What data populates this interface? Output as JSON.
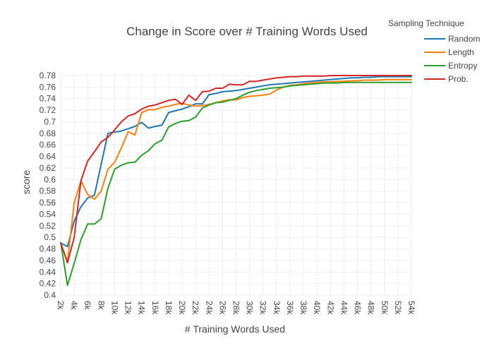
{
  "chart_data": {
    "type": "line",
    "title": "Change in Score over # Training Words Used",
    "xlabel": "# Training Words Used",
    "ylabel": "score",
    "x": [
      2000,
      3000,
      4000,
      5000,
      6000,
      7000,
      8000,
      9000,
      10000,
      11000,
      12000,
      13000,
      14000,
      15000,
      16000,
      17000,
      18000,
      19000,
      20000,
      21000,
      22000,
      23000,
      24000,
      25000,
      26000,
      27000,
      28000,
      29000,
      30000,
      31000,
      32000,
      33000,
      34000,
      35000,
      36000,
      37000,
      38000,
      39000,
      40000,
      41000,
      42000,
      43000,
      44000,
      45000,
      46000,
      47000,
      48000,
      49000,
      50000,
      51000,
      52000,
      53000,
      54000
    ],
    "xlim": [
      2000,
      54000
    ],
    "ylim": [
      0.4,
      0.78
    ],
    "grid": true,
    "x_ticks": [
      {
        "value": 2000,
        "label": "2k"
      },
      {
        "value": 4000,
        "label": "4k"
      },
      {
        "value": 6000,
        "label": "6k"
      },
      {
        "value": 8000,
        "label": "8k"
      },
      {
        "value": 10000,
        "label": "10k"
      },
      {
        "value": 12000,
        "label": "12k"
      },
      {
        "value": 14000,
        "label": "14k"
      },
      {
        "value": 16000,
        "label": "16k"
      },
      {
        "value": 18000,
        "label": "18k"
      },
      {
        "value": 20000,
        "label": "20k"
      },
      {
        "value": 22000,
        "label": "22k"
      },
      {
        "value": 24000,
        "label": "24k"
      },
      {
        "value": 26000,
        "label": "26k"
      },
      {
        "value": 28000,
        "label": "28k"
      },
      {
        "value": 30000,
        "label": "30k"
      },
      {
        "value": 32000,
        "label": "32k"
      },
      {
        "value": 34000,
        "label": "34k"
      },
      {
        "value": 36000,
        "label": "36k"
      },
      {
        "value": 38000,
        "label": "38k"
      },
      {
        "value": 40000,
        "label": "40k"
      },
      {
        "value": 42000,
        "label": "42k"
      },
      {
        "value": 44000,
        "label": "44k"
      },
      {
        "value": 46000,
        "label": "46k"
      },
      {
        "value": 48000,
        "label": "48k"
      },
      {
        "value": 50000,
        "label": "50k"
      },
      {
        "value": 52000,
        "label": "52k"
      },
      {
        "value": 54000,
        "label": "54k"
      }
    ],
    "y_ticks": [
      {
        "value": 0.4,
        "label": "0.4"
      },
      {
        "value": 0.42,
        "label": "0.42"
      },
      {
        "value": 0.44,
        "label": "0.44"
      },
      {
        "value": 0.46,
        "label": "0.46"
      },
      {
        "value": 0.48,
        "label": "0.48"
      },
      {
        "value": 0.5,
        "label": "0.5"
      },
      {
        "value": 0.52,
        "label": "0.52"
      },
      {
        "value": 0.54,
        "label": "0.54"
      },
      {
        "value": 0.56,
        "label": "0.56"
      },
      {
        "value": 0.58,
        "label": "0.58"
      },
      {
        "value": 0.6,
        "label": "0.6"
      },
      {
        "value": 0.62,
        "label": "0.62"
      },
      {
        "value": 0.64,
        "label": "0.64"
      },
      {
        "value": 0.66,
        "label": "0.66"
      },
      {
        "value": 0.68,
        "label": "0.68"
      },
      {
        "value": 0.7,
        "label": "0.7"
      },
      {
        "value": 0.72,
        "label": "0.72"
      },
      {
        "value": 0.74,
        "label": "0.74"
      },
      {
        "value": 0.76,
        "label": "0.76"
      },
      {
        "value": 0.78,
        "label": "0.78"
      }
    ],
    "legend": {
      "title": "Sampling Technique",
      "position": "top-right"
    },
    "series": [
      {
        "name": "Random",
        "color": "#1f77b4",
        "values": [
          0.49,
          0.484,
          0.528,
          0.553,
          0.568,
          0.573,
          0.626,
          0.68,
          0.682,
          0.684,
          0.688,
          0.692,
          0.699,
          0.689,
          0.692,
          0.694,
          0.716,
          0.719,
          0.722,
          0.726,
          0.731,
          0.731,
          0.747,
          0.749,
          0.752,
          0.753,
          0.754,
          0.756,
          0.758,
          0.76,
          0.762,
          0.764,
          0.765,
          0.766,
          0.767,
          0.768,
          0.769,
          0.77,
          0.771,
          0.772,
          0.773,
          0.774,
          0.775,
          0.776,
          0.776,
          0.777,
          0.777,
          0.778,
          0.778,
          0.778,
          0.778,
          0.778,
          0.778
        ]
      },
      {
        "name": "Length",
        "color": "#ff7f0e",
        "values": [
          0.49,
          0.458,
          0.56,
          0.598,
          0.574,
          0.566,
          0.58,
          0.618,
          0.63,
          0.655,
          0.683,
          0.677,
          0.716,
          0.721,
          0.721,
          0.725,
          0.727,
          0.73,
          0.732,
          0.729,
          0.727,
          0.728,
          0.73,
          0.733,
          0.736,
          0.738,
          0.738,
          0.742,
          0.744,
          0.745,
          0.746,
          0.748,
          0.755,
          0.76,
          0.763,
          0.764,
          0.766,
          0.767,
          0.768,
          0.769,
          0.769,
          0.77,
          0.77,
          0.771,
          0.771,
          0.772,
          0.772,
          0.772,
          0.773,
          0.773,
          0.773,
          0.773,
          0.773
        ]
      },
      {
        "name": "Entropy",
        "color": "#2ca02c",
        "values": [
          0.491,
          0.417,
          0.455,
          0.496,
          0.523,
          0.523,
          0.532,
          0.585,
          0.618,
          0.625,
          0.629,
          0.63,
          0.642,
          0.65,
          0.662,
          0.668,
          0.691,
          0.697,
          0.701,
          0.702,
          0.708,
          0.724,
          0.729,
          0.733,
          0.734,
          0.737,
          0.74,
          0.746,
          0.751,
          0.754,
          0.756,
          0.758,
          0.759,
          0.76,
          0.762,
          0.763,
          0.764,
          0.765,
          0.766,
          0.767,
          0.767,
          0.767,
          0.768,
          0.768,
          0.768,
          0.768,
          0.768,
          0.768,
          0.768,
          0.768,
          0.768,
          0.768,
          0.768
        ]
      },
      {
        "name": "Prob.",
        "color": "#d62728",
        "values": [
          0.49,
          0.456,
          0.5,
          0.598,
          0.632,
          0.648,
          0.665,
          0.673,
          0.686,
          0.7,
          0.71,
          0.714,
          0.722,
          0.727,
          0.729,
          0.733,
          0.737,
          0.739,
          0.73,
          0.746,
          0.737,
          0.752,
          0.753,
          0.758,
          0.758,
          0.765,
          0.764,
          0.764,
          0.77,
          0.77,
          0.772,
          0.774,
          0.776,
          0.777,
          0.778,
          0.778,
          0.779,
          0.779,
          0.779,
          0.779,
          0.78,
          0.78,
          0.78,
          0.78,
          0.78,
          0.78,
          0.78,
          0.78,
          0.78,
          0.78,
          0.78,
          0.78,
          0.78
        ]
      }
    ]
  }
}
